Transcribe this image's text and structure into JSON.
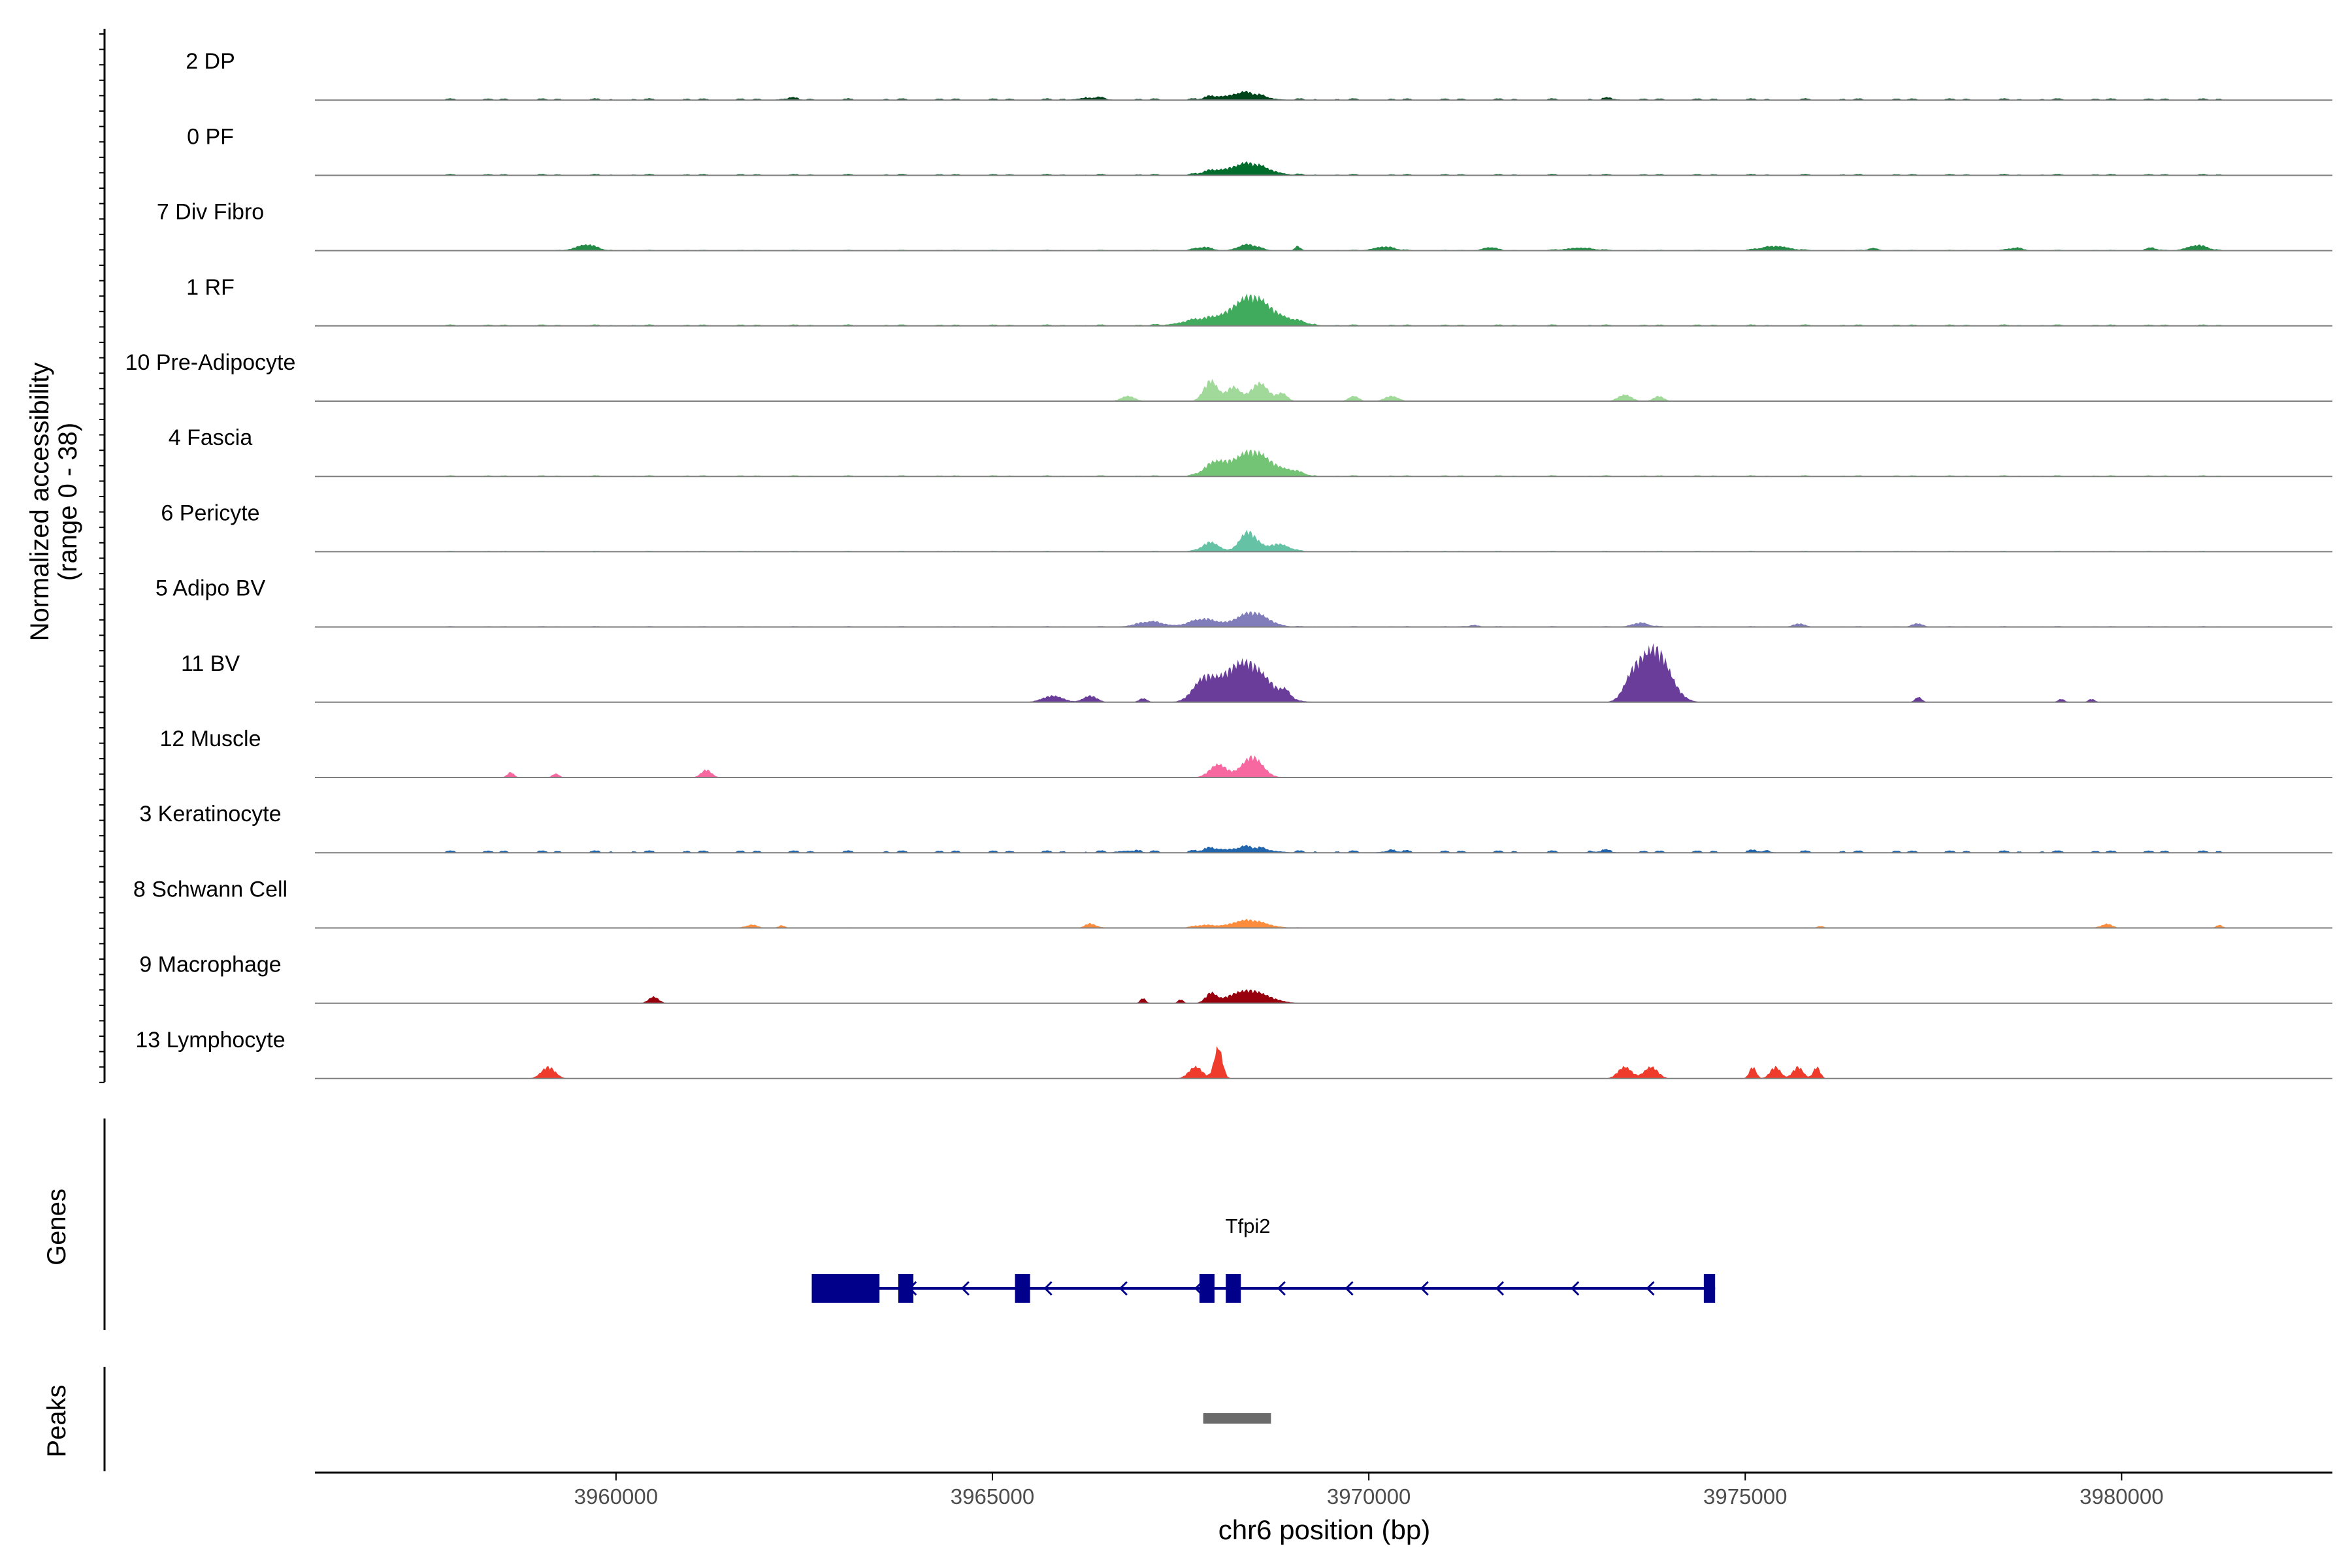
{
  "chart_data": {
    "type": "area",
    "chromosome": "chr6",
    "xlabel": "chr6 position (bp)",
    "xlim": [
      3956000,
      3982800
    ],
    "x_ticks": [
      3960000,
      3965000,
      3970000,
      3975000,
      3980000
    ],
    "x_tick_labels": [
      "3960000",
      "3965000",
      "3970000",
      "3975000",
      "3980000"
    ],
    "ylabel_line1": "Normalized accessibility",
    "ylabel_line2": "(range 0 - 38)",
    "y_range": [
      0,
      38
    ],
    "tracks": [
      {
        "name": "2 DP",
        "color": "#00441b",
        "background": [
          3957700,
          3981700,
          0.06
        ],
        "peaks": [
          [
            3968350,
            0.55,
            500
          ],
          [
            3966300,
            0.18,
            350
          ],
          [
            3967900,
            0.18,
            250
          ],
          [
            3962300,
            0.12,
            250
          ],
          [
            3973200,
            0.1,
            200
          ]
        ]
      },
      {
        "name": "0 PF",
        "color": "#006d2c",
        "background": [
          3957700,
          3981700,
          0.05
        ],
        "peaks": [
          [
            3968400,
            0.9,
            550
          ],
          [
            3967900,
            0.25,
            300
          ]
        ]
      },
      {
        "name": "7 Div Fibro",
        "color": "#238b45",
        "background": [
          3959200,
          3981700,
          0.03
        ],
        "peaks": [
          [
            3959600,
            0.45,
            300
          ],
          [
            3968400,
            0.45,
            300
          ],
          [
            3967800,
            0.25,
            250
          ],
          [
            3969050,
            0.3,
            80
          ],
          [
            3970200,
            0.3,
            300
          ],
          [
            3971600,
            0.25,
            200
          ],
          [
            3972800,
            0.22,
            400
          ],
          [
            3975400,
            0.35,
            400
          ],
          [
            3976700,
            0.2,
            150
          ],
          [
            3978600,
            0.22,
            200
          ],
          [
            3981000,
            0.4,
            300
          ],
          [
            3980400,
            0.2,
            150
          ]
        ]
      },
      {
        "name": "1 RF",
        "color": "#41ab5d",
        "background": [
          3957700,
          3981700,
          0.05
        ],
        "peaks": [
          [
            3968450,
            2.2,
            550
          ],
          [
            3967800,
            0.5,
            600
          ],
          [
            3969000,
            0.3,
            400
          ]
        ]
      },
      {
        "name": "10 Pre-Adipocyte",
        "color": "#a1d99b",
        "background": null,
        "peaks": [
          [
            3967900,
            1.6,
            200
          ],
          [
            3968200,
            1.1,
            200
          ],
          [
            3968550,
            1.4,
            250
          ],
          [
            3968850,
            0.6,
            150
          ],
          [
            3966800,
            0.4,
            200
          ],
          [
            3969800,
            0.4,
            150
          ],
          [
            3970300,
            0.4,
            200
          ],
          [
            3973400,
            0.5,
            200
          ],
          [
            3973850,
            0.4,
            150
          ]
        ]
      },
      {
        "name": "4 Fascia",
        "color": "#74c476",
        "background": [
          3957700,
          3981700,
          0.04
        ],
        "peaks": [
          [
            3968450,
            1.9,
            550
          ],
          [
            3967950,
            0.9,
            300
          ],
          [
            3969000,
            0.3,
            300
          ]
        ]
      },
      {
        "name": "6 Pericyte",
        "color": "#66c2a4",
        "background": [
          3957700,
          3981700,
          0.03
        ],
        "peaks": [
          [
            3968400,
            1.5,
            250
          ],
          [
            3967900,
            0.7,
            250
          ],
          [
            3968800,
            0.6,
            300
          ]
        ]
      },
      {
        "name": "5 Adipo BV",
        "color": "#807dba",
        "background": [
          3957700,
          3981700,
          0.03
        ],
        "peaks": [
          [
            3968450,
            1.1,
            450
          ],
          [
            3967800,
            0.6,
            400
          ],
          [
            3967100,
            0.4,
            400
          ],
          [
            3973600,
            0.3,
            250
          ],
          [
            3975700,
            0.25,
            150
          ],
          [
            3977300,
            0.25,
            150
          ],
          [
            3971400,
            0.15,
            150
          ]
        ]
      },
      {
        "name": "11 BV",
        "color": "#6a3d9a",
        "background": null,
        "peaks": [
          [
            3968350,
            3.1,
            650
          ],
          [
            3967800,
            1.4,
            300
          ],
          [
            3973800,
            4.1,
            420
          ],
          [
            3973500,
            1.4,
            250
          ],
          [
            3965800,
            0.5,
            300
          ],
          [
            3966300,
            0.5,
            200
          ],
          [
            3967000,
            0.3,
            120
          ],
          [
            3977300,
            0.4,
            100
          ],
          [
            3979200,
            0.25,
            100
          ],
          [
            3979600,
            0.25,
            100
          ],
          [
            3968900,
            0.5,
            120
          ]
        ]
      },
      {
        "name": "12 Muscle",
        "color": "#f768a1",
        "background": null,
        "peaks": [
          [
            3968450,
            1.6,
            300
          ],
          [
            3968000,
            1.0,
            250
          ],
          [
            3958600,
            0.4,
            100
          ],
          [
            3959200,
            0.3,
            100
          ],
          [
            3961200,
            0.6,
            150
          ]
        ]
      },
      {
        "name": "3 Keratinocyte",
        "color": "#2166ac",
        "background": [
          3957700,
          3981700,
          0.08
        ],
        "peaks": [
          [
            3968400,
            0.4,
            550
          ],
          [
            3967900,
            0.25,
            300
          ],
          [
            3966800,
            0.15,
            300
          ],
          [
            3970300,
            0.12,
            300
          ],
          [
            3973100,
            0.1,
            300
          ],
          [
            3975200,
            0.1,
            300
          ]
        ]
      },
      {
        "name": "8 Schwann Cell",
        "color": "#fd8d3c",
        "background": [
          3960400,
          3981700,
          0.02
        ],
        "peaks": [
          [
            3968400,
            0.6,
            500
          ],
          [
            3967800,
            0.2,
            300
          ],
          [
            3966300,
            0.35,
            150
          ],
          [
            3961800,
            0.25,
            150
          ],
          [
            3962200,
            0.2,
            100
          ],
          [
            3979800,
            0.3,
            150
          ],
          [
            3981300,
            0.2,
            100
          ],
          [
            3976000,
            0.15,
            100
          ]
        ]
      },
      {
        "name": "9 Macrophage",
        "color": "#99000d",
        "background": null,
        "peaks": [
          [
            3968400,
            1.0,
            550
          ],
          [
            3967900,
            0.7,
            150
          ],
          [
            3960500,
            0.5,
            150
          ],
          [
            3967000,
            0.4,
            80
          ],
          [
            3967500,
            0.3,
            80
          ]
        ]
      },
      {
        "name": "13 Lymphocyte",
        "color": "#ef3b2c",
        "background": null,
        "peaks": [
          [
            3968000,
            2.4,
            120
          ],
          [
            3967700,
            0.9,
            200
          ],
          [
            3959100,
            0.9,
            200
          ],
          [
            3973400,
            0.9,
            200
          ],
          [
            3973750,
            0.9,
            200
          ],
          [
            3975100,
            0.9,
            100
          ],
          [
            3975400,
            0.9,
            150
          ],
          [
            3975700,
            0.9,
            150
          ],
          [
            3975950,
            0.9,
            100
          ]
        ]
      }
    ],
    "genes_label": "Genes",
    "gene": {
      "name": "Tfpi2",
      "color": "#00008b",
      "strand": "-",
      "start": 3962600,
      "end": 3974600,
      "exons": [
        [
          3962600,
          3963500
        ],
        [
          3963750,
          3963950
        ],
        [
          3965300,
          3965500
        ],
        [
          3967750,
          3967950
        ],
        [
          3968100,
          3968300
        ],
        [
          3974450,
          3974600
        ]
      ],
      "arrows": [
        3963900,
        3964600,
        3965700,
        3966700,
        3967700,
        3968800,
        3969700,
        3970700,
        3971700,
        3972700,
        3973700
      ]
    },
    "peaks_label": "Peaks",
    "peak_regions": [
      [
        3967800,
        3968700
      ]
    ],
    "peak_color": "#6b6b6b"
  }
}
